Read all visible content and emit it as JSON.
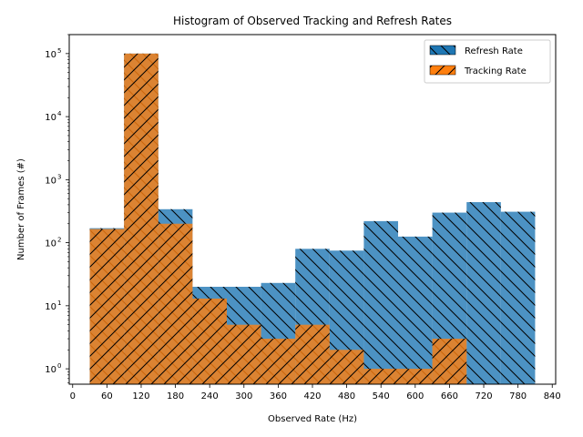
{
  "chart_data": {
    "type": "bar",
    "title": "Histogram of Observed Tracking and Refresh Rates",
    "xlabel": "Observed Rate (Hz)",
    "ylabel": "Number of Frames (#)",
    "xlim": [
      -6,
      846
    ],
    "ylim": [
      0.57,
      200000
    ],
    "y_scale": "log",
    "x_ticks": [
      0,
      60,
      120,
      180,
      240,
      300,
      360,
      420,
      480,
      540,
      600,
      660,
      720,
      780,
      840
    ],
    "y_ticks": [
      {
        "value": 1,
        "label": "10",
        "exp": "0"
      },
      {
        "value": 10,
        "label": "10",
        "exp": "1"
      },
      {
        "value": 100,
        "label": "10",
        "exp": "2"
      },
      {
        "value": 1000,
        "label": "10",
        "exp": "3"
      },
      {
        "value": 10000,
        "label": "10",
        "exp": "4"
      },
      {
        "value": 100000,
        "label": "10",
        "exp": "5"
      }
    ],
    "bin_edges": [
      30,
      90,
      150,
      210,
      270,
      330,
      390,
      450,
      510,
      570,
      630,
      690,
      750,
      810
    ],
    "series": [
      {
        "name": "Refresh Rate",
        "color": "#1f77b4",
        "hatch": "backslash",
        "values": [
          170,
          100000,
          340,
          20,
          20,
          23,
          80,
          75,
          220,
          125,
          300,
          440,
          310
        ]
      },
      {
        "name": "Tracking Rate",
        "color": "#ff7f0e",
        "hatch": "slash",
        "values": [
          165,
          100000,
          200,
          13,
          5,
          3,
          5,
          2,
          1,
          1,
          3,
          null,
          null
        ]
      }
    ],
    "legend": "top-right",
    "grid": false
  }
}
